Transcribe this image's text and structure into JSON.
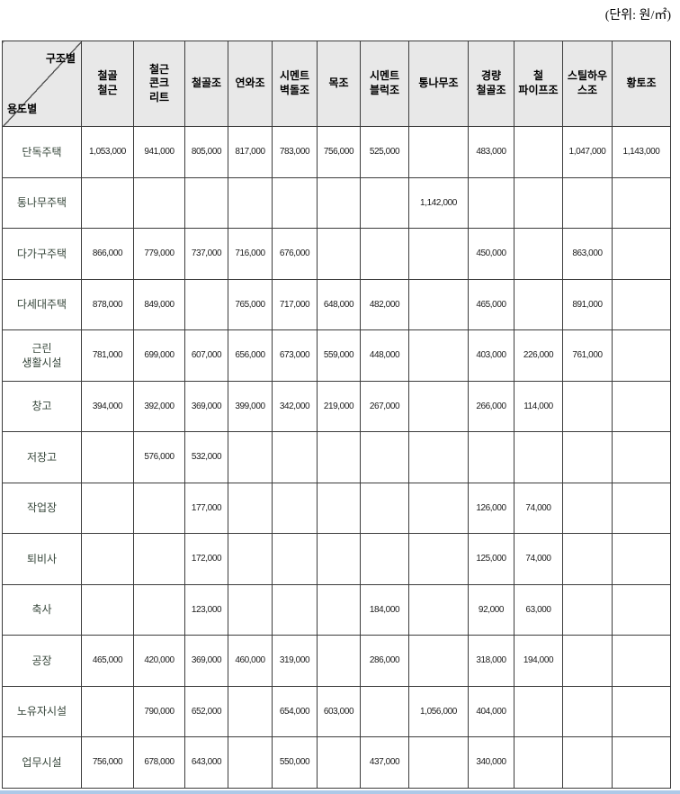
{
  "unit_label": "(단위: 원/㎡)",
  "colors": {
    "header_bg": "#e8e8e8",
    "grid": "#3c3c3c",
    "row_label_text": "#36463a",
    "bottom_bar": "#adc9e8"
  },
  "table": {
    "corner": {
      "top_label": "구조별",
      "bottom_label": "용도별"
    },
    "columns": [
      "철골\n철근",
      "철근\n콘크\n리트",
      "철골조",
      "연와조",
      "시멘트\n벽돌조",
      "목조",
      "시멘트\n블럭조",
      "통나무조",
      "경량\n철골조",
      "철\n파이프조",
      "스틸하우\n스조",
      "황토조"
    ],
    "rows": [
      {
        "label": "단독주택",
        "values": [
          "1,053,000",
          "941,000",
          "805,000",
          "817,000",
          "783,000",
          "756,000",
          "525,000",
          "",
          "483,000",
          "",
          "1,047,000",
          "1,143,000"
        ]
      },
      {
        "label": "통나무주택",
        "values": [
          "",
          "",
          "",
          "",
          "",
          "",
          "",
          "1,142,000",
          "",
          "",
          "",
          ""
        ]
      },
      {
        "label": "다가구주택",
        "values": [
          "866,000",
          "779,000",
          "737,000",
          "716,000",
          "676,000",
          "",
          "",
          "",
          "450,000",
          "",
          "863,000",
          ""
        ]
      },
      {
        "label": "다세대주택",
        "values": [
          "878,000",
          "849,000",
          "",
          "765,000",
          "717,000",
          "648,000",
          "482,000",
          "",
          "465,000",
          "",
          "891,000",
          ""
        ]
      },
      {
        "label": "근린\n생활시설",
        "values": [
          "781,000",
          "699,000",
          "607,000",
          "656,000",
          "673,000",
          "559,000",
          "448,000",
          "",
          "403,000",
          "226,000",
          "761,000",
          ""
        ]
      },
      {
        "label": "창고",
        "values": [
          "394,000",
          "392,000",
          "369,000",
          "399,000",
          "342,000",
          "219,000",
          "267,000",
          "",
          "266,000",
          "114,000",
          "",
          ""
        ]
      },
      {
        "label": "저장고",
        "values": [
          "",
          "576,000",
          "532,000",
          "",
          "",
          "",
          "",
          "",
          "",
          "",
          "",
          ""
        ]
      },
      {
        "label": "작업장",
        "values": [
          "",
          "",
          "177,000",
          "",
          "",
          "",
          "",
          "",
          "126,000",
          "74,000",
          "",
          ""
        ]
      },
      {
        "label": "퇴비사",
        "values": [
          "",
          "",
          "172,000",
          "",
          "",
          "",
          "",
          "",
          "125,000",
          "74,000",
          "",
          ""
        ]
      },
      {
        "label": "축사",
        "values": [
          "",
          "",
          "123,000",
          "",
          "",
          "",
          "184,000",
          "",
          "92,000",
          "63,000",
          "",
          ""
        ]
      },
      {
        "label": "공장",
        "values": [
          "465,000",
          "420,000",
          "369,000",
          "460,000",
          "319,000",
          "",
          "286,000",
          "",
          "318,000",
          "194,000",
          "",
          ""
        ]
      },
      {
        "label": "노유자시설",
        "values": [
          "",
          "790,000",
          "652,000",
          "",
          "654,000",
          "603,000",
          "",
          "1,056,000",
          "404,000",
          "",
          "",
          ""
        ]
      },
      {
        "label": "업무시설",
        "values": [
          "756,000",
          "678,000",
          "643,000",
          "",
          "550,000",
          "",
          "437,000",
          "",
          "340,000",
          "",
          "",
          ""
        ]
      }
    ]
  }
}
